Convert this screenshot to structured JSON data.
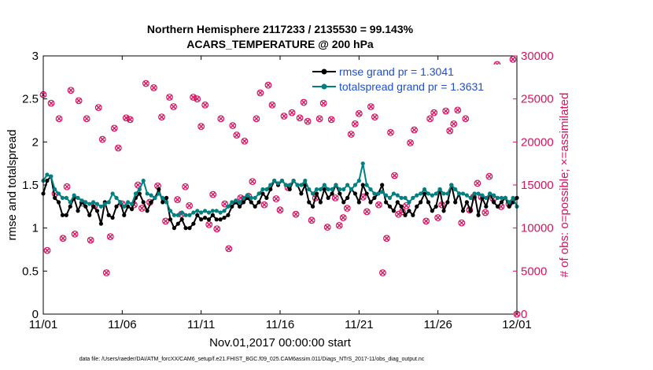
{
  "chart_data": {
    "type": "line",
    "title": [
      "Northern Hemisphere 2117233 / 2135530 = 99.143%",
      "ACARS_TEMPERATURE @ 200 hPa"
    ],
    "xlabel": "Nov.01,2017 00:00:00 start",
    "ylabel_left": "rmse and totalspread",
    "ylabel_right": "# of obs: o=possible; ×=assimilated",
    "xlim": [
      0,
      30
    ],
    "ylim_left": [
      0,
      3
    ],
    "ylim_right": [
      0,
      30000
    ],
    "xticks": [
      0,
      5,
      10,
      15,
      20,
      25,
      30
    ],
    "xtick_labels": [
      "11/01",
      "11/06",
      "11/11",
      "11/16",
      "11/21",
      "11/26",
      "12/01"
    ],
    "yticks_left": [
      0,
      0.5,
      1,
      1.5,
      2,
      2.5,
      3
    ],
    "ytick_labels_left": [
      "0",
      "0.5",
      "1",
      "1.5",
      "2",
      "2.5",
      "3"
    ],
    "yticks_right": [
      0,
      5000,
      10000,
      15000,
      20000,
      25000,
      30000
    ],
    "ytick_labels_right": [
      "0",
      "5000",
      "10000",
      "15000",
      "20000",
      "25000",
      "30000"
    ],
    "footnote": "data file: /Users/raeder/DAI/ATM_forcXX/CAM6_setup/f.e21.FHIST_BGC.f09_025.CAM6assim.011/Diags_NTrS_2017-11/obs_diag_output.nc",
    "colors": {
      "rmse": "#000000",
      "spread": "#008080",
      "obs": "#d6145f",
      "legend_text": "#1f4fd0",
      "axis": "#000000"
    },
    "series": [
      {
        "name": "rmse grand pr = 1.3041",
        "values": [
          1.4,
          1.55,
          1.6,
          1.35,
          1.3,
          1.15,
          1.15,
          1.25,
          1.35,
          1.2,
          1.3,
          1.25,
          1.15,
          1.25,
          1.2,
          1.05,
          1.3,
          1.15,
          1.12,
          1.25,
          1.3,
          1.15,
          1.25,
          1.22,
          1.35,
          1.4,
          1.3,
          1.2,
          1.3,
          1.35,
          1.45,
          1.3,
          1.35,
          1.1,
          1.0,
          1.05,
          1.1,
          1.0,
          1.0,
          1.05,
          1.15,
          1.1,
          1.12,
          1.1,
          1.15,
          1.1,
          1.1,
          1.12,
          1.15,
          1.25,
          1.3,
          1.25,
          1.3,
          1.35,
          1.3,
          1.25,
          1.3,
          1.4,
          1.35,
          1.45,
          1.55,
          1.5,
          1.55,
          1.5,
          1.45,
          1.55,
          1.5,
          1.4,
          1.5,
          1.3,
          1.25,
          1.4,
          1.3,
          1.45,
          1.35,
          1.4,
          1.5,
          1.4,
          1.3,
          1.35,
          1.45,
          1.4,
          1.3,
          1.5,
          1.4,
          1.3,
          1.35,
          1.4,
          1.5,
          1.3,
          1.25,
          1.2,
          1.3,
          1.25,
          1.15,
          1.2,
          1.15,
          1.25,
          1.3,
          1.4,
          1.3,
          1.2,
          1.25,
          1.45,
          1.2,
          1.3,
          1.5,
          1.3,
          1.4,
          1.2,
          1.3,
          1.2,
          1.4,
          1.15,
          1.35,
          1.25,
          1.4,
          1.3,
          1.25,
          1.3,
          1.35,
          1.25,
          1.3,
          1.35
        ],
        "color": "#000000",
        "marker": "dot"
      },
      {
        "name": "totalspread grand pr = 1.3631",
        "values": [
          1.55,
          1.62,
          1.6,
          1.45,
          1.4,
          1.35,
          1.35,
          1.3,
          1.38,
          1.35,
          1.32,
          1.3,
          1.28,
          1.3,
          1.28,
          1.25,
          1.28,
          1.3,
          1.4,
          1.35,
          1.3,
          1.25,
          1.3,
          1.28,
          1.4,
          1.45,
          1.55,
          1.4,
          1.38,
          1.35,
          1.4,
          1.35,
          1.3,
          1.2,
          1.15,
          1.15,
          1.18,
          1.15,
          1.15,
          1.18,
          1.2,
          1.18,
          1.2,
          1.18,
          1.2,
          1.2,
          1.18,
          1.2,
          1.25,
          1.3,
          1.32,
          1.3,
          1.35,
          1.38,
          1.35,
          1.35,
          1.4,
          1.45,
          1.45,
          1.5,
          1.55,
          1.52,
          1.55,
          1.5,
          1.5,
          1.55,
          1.5,
          1.5,
          1.55,
          1.45,
          1.4,
          1.45,
          1.45,
          1.5,
          1.45,
          1.45,
          1.5,
          1.45,
          1.45,
          1.5,
          1.45,
          1.5,
          1.55,
          1.75,
          1.5,
          1.45,
          1.4,
          1.4,
          1.42,
          1.38,
          1.35,
          1.4,
          1.38,
          1.35,
          1.35,
          1.3,
          1.35,
          1.38,
          1.4,
          1.45,
          1.4,
          1.38,
          1.4,
          1.45,
          1.4,
          1.4,
          1.5,
          1.45,
          1.4,
          1.4,
          1.38,
          1.35,
          1.4,
          1.4,
          1.38,
          1.35,
          1.4,
          1.38,
          1.35,
          1.35,
          1.35,
          1.3,
          1.35,
          1.25
        ],
        "color": "#008080",
        "marker": "dot"
      }
    ],
    "obs_possible": {
      "x": [
        0.0,
        0.25,
        0.5,
        0.75,
        1.0,
        1.25,
        1.5,
        1.75,
        2.0,
        2.25,
        2.5,
        2.75,
        3.0,
        3.25,
        3.5,
        3.75,
        4.0,
        4.25,
        4.5,
        4.75,
        5.0,
        5.25,
        5.5,
        5.75,
        6.0,
        6.25,
        6.5,
        6.75,
        7.0,
        7.25,
        7.5,
        7.75,
        8.0,
        8.25,
        8.5,
        8.75,
        9.0,
        9.25,
        9.5,
        9.75,
        10.0,
        10.25,
        10.5,
        10.75,
        11.0,
        11.25,
        11.5,
        11.75,
        12.0,
        12.25,
        12.5,
        12.75,
        13.0,
        13.25,
        13.5,
        13.75,
        14.0,
        14.25,
        14.5,
        14.75,
        15.0,
        15.25,
        15.5,
        15.75,
        16.0,
        16.25,
        16.5,
        16.75,
        17.0,
        17.25,
        17.5,
        17.75,
        18.0,
        18.25,
        18.5,
        18.75,
        19.0,
        19.25,
        19.5,
        19.75,
        20.0,
        20.25,
        20.5,
        20.75,
        21.0,
        21.25,
        21.5,
        21.75,
        22.0,
        22.25,
        22.5,
        22.75,
        23.0,
        23.25,
        23.5,
        23.75,
        24.0,
        24.25,
        24.5,
        24.75,
        25.0,
        25.25,
        25.5,
        25.75,
        26.0,
        26.25,
        26.5,
        26.75,
        27.0,
        27.25,
        27.5,
        27.75,
        28.0,
        28.25,
        28.5,
        28.75,
        29.0,
        29.25,
        29.5,
        29.75,
        30.0
      ],
      "values": [
        25500,
        7400,
        24500,
        14000,
        22700,
        8800,
        14800,
        26000,
        9300,
        24800,
        12900,
        22700,
        8600,
        12600,
        24000,
        20300,
        4800,
        9000,
        21600,
        19300,
        12800,
        22800,
        22600,
        12700,
        15000,
        12300,
        26800,
        13000,
        26300,
        14900,
        22900,
        10800,
        25200,
        24100,
        13300,
        11600,
        14800,
        12600,
        25200,
        25000,
        21800,
        24300,
        10400,
        13900,
        9900,
        22700,
        12800,
        7600,
        21900,
        20800,
        13500,
        20100,
        13700,
        15400,
        22700,
        25700,
        12700,
        26600,
        24300,
        13400,
        12100,
        23000,
        14700,
        23400,
        11600,
        22800,
        24600,
        22400,
        10900,
        13500,
        22700,
        24500,
        10100,
        22600,
        13500,
        10300,
        11200,
        12300,
        20900,
        22100,
        23300,
        13600,
        11900,
        24100,
        22900,
        12700,
        4800,
        8800,
        21100,
        16100,
        11600,
        11900,
        12600,
        19900,
        21400,
        25800,
        25900,
        10800,
        22700,
        23400,
        11200,
        12700,
        23600,
        21300,
        22100,
        23700,
        10600,
        22700,
        12100,
        13600,
        15200,
        13600,
        11800,
        16000,
        13400,
        29000,
        12500,
        28500,
        12800,
        29600,
        0
      ]
    },
    "legend_position": "top-right"
  }
}
